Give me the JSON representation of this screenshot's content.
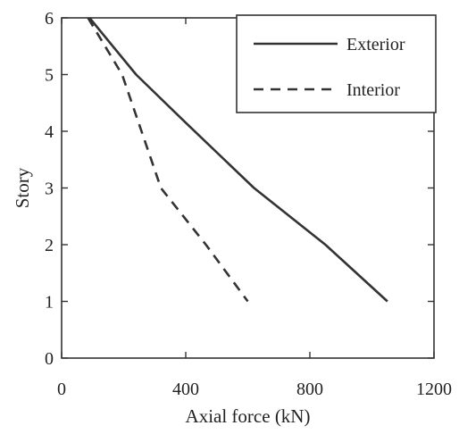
{
  "chart_data": {
    "type": "line",
    "title": "",
    "xlabel": "Axial force (kN)",
    "ylabel": "Story",
    "xlim": [
      0,
      1200
    ],
    "ylim": [
      0,
      6
    ],
    "xticks": [
      0,
      400,
      800,
      1200
    ],
    "yticks": [
      0,
      1,
      2,
      3,
      4,
      5,
      6
    ],
    "grid": false,
    "legend_position": "top-right",
    "series": [
      {
        "name": "Exterior",
        "line_style": "solid",
        "color": "#333333",
        "x": [
          90,
          240,
          400,
          620,
          850,
          1050
        ],
        "y": [
          6,
          5,
          4.15,
          3,
          2,
          1
        ]
      },
      {
        "name": "Interior",
        "line_style": "dashed",
        "color": "#333333",
        "x": [
          85,
          195,
          320,
          465,
          600
        ],
        "y": [
          6,
          5,
          3,
          2,
          1
        ]
      }
    ]
  }
}
